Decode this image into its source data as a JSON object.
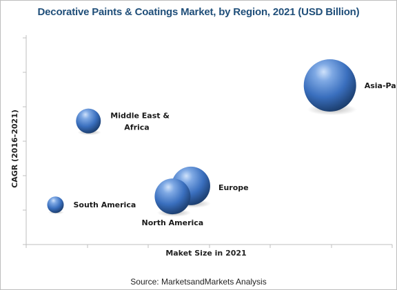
{
  "chart_data": {
    "type": "bubble",
    "title": "Decorative Paints & Coatings Market, by Region, 2021 (USD Billion)",
    "xlabel": "Maket Size in 2021",
    "ylabel": "CAGR (2016-2021)",
    "ticks_labeled": false,
    "points": [
      {
        "label": "Asia-Pacific",
        "x": 0.83,
        "y": 0.76,
        "size": 38
      },
      {
        "label": "Middle East & Africa",
        "x": 0.17,
        "y": 0.59,
        "size": 18
      },
      {
        "label": "Europe",
        "x": 0.45,
        "y": 0.28,
        "size": 28
      },
      {
        "label": "North America",
        "x": 0.4,
        "y": 0.23,
        "size": 26
      },
      {
        "label": "South America",
        "x": 0.08,
        "y": 0.19,
        "size": 12
      }
    ],
    "bubble_color": "#3a74c4"
  },
  "footer": {
    "source": "Source:  MarketsandMarkets Analysis"
  }
}
